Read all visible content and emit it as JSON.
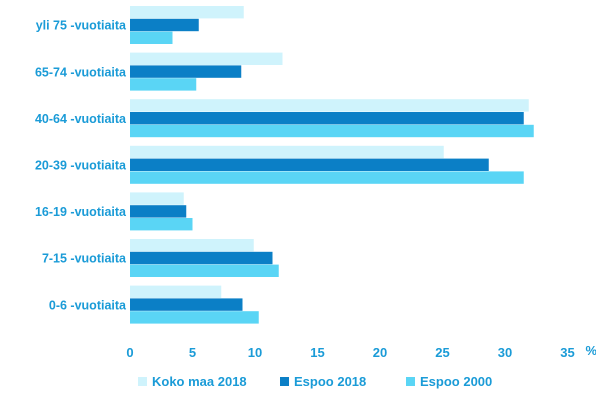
{
  "chart_data": {
    "type": "bar",
    "orientation": "horizontal",
    "categories": [
      "yli 75 -vuotiaita",
      "65-74 -vuotiaita",
      "40-64 -vuotiaita",
      "20-39 -vuotiaita",
      "16-19 -vuotiaita",
      "7-15 -vuotiaita",
      "0-6 -vuotiaita"
    ],
    "series": [
      {
        "name": "Koko maa 2018",
        "color": "#cff3fc",
        "values": [
          9.1,
          12.2,
          31.9,
          25.1,
          4.3,
          9.9,
          7.3
        ]
      },
      {
        "name": "Espoo 2018",
        "color": "#0b7fc6",
        "values": [
          5.5,
          8.9,
          31.5,
          28.7,
          4.5,
          11.4,
          9.0
        ]
      },
      {
        "name": "Espoo 2000",
        "color": "#5ad5f5",
        "values": [
          3.4,
          5.3,
          32.3,
          31.5,
          5.0,
          11.9,
          10.3
        ]
      }
    ],
    "xlim": [
      0,
      35
    ],
    "xticks": [
      "0",
      "5",
      "10",
      "15",
      "20",
      "25",
      "30",
      "35"
    ],
    "x_unit": "%",
    "legend_position": "bottom",
    "grid": false
  }
}
